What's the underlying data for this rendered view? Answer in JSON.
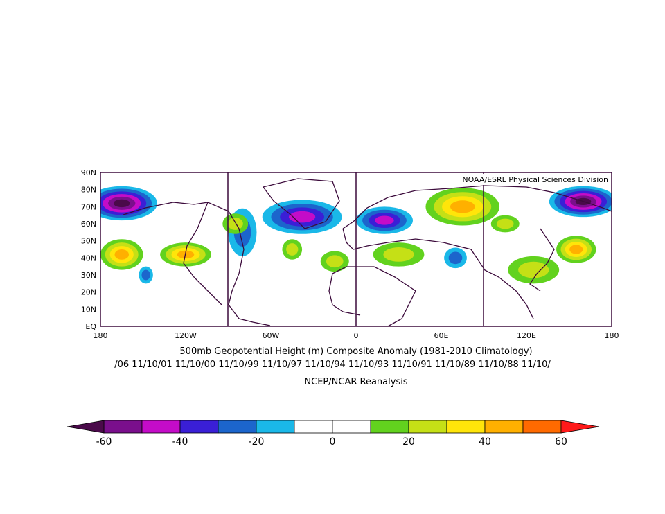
{
  "map": {
    "credit": "NOAA/ESRL Physical Sciences Division",
    "lat_labels": [
      "90N",
      "80N",
      "70N",
      "60N",
      "50N",
      "40N",
      "30N",
      "20N",
      "10N",
      "EQ"
    ],
    "lon_labels": [
      "180",
      "120W",
      "60W",
      "0",
      "60E",
      "120E",
      "180"
    ]
  },
  "captions": {
    "title": "500mb Geopotential Height (m) Composite Anomaly (1981-2010 Climatology)",
    "dates": "/06 11/10/01 11/10/00 11/10/99 11/10/97 11/10/94 11/10/93 11/10/91 11/10/89 11/10/88 11/10/",
    "source": "NCEP/NCAR Reanalysis"
  },
  "colorbar": {
    "labels": [
      "-60",
      "-40",
      "-20",
      "0",
      "20",
      "40",
      "60"
    ],
    "colors": [
      "#7a0f8c",
      "#c40cc8",
      "#3a1fd6",
      "#1c65cc",
      "#1ab8e8",
      "#ffffff",
      "#ffffff",
      "#62d21e",
      "#c5e016",
      "#ffe50a",
      "#ffb000",
      "#ff6a00"
    ],
    "low_color": "#4a0a4a",
    "high_color": "#ff1a1a"
  },
  "anomaly_blobs": [
    {
      "lon": -165,
      "lat": 72,
      "rx": 25,
      "ry": 10,
      "level": -60
    },
    {
      "lon": 160,
      "lat": 73,
      "rx": 24,
      "ry": 9,
      "level": -60
    },
    {
      "lon": -38,
      "lat": 64,
      "rx": 28,
      "ry": 10,
      "level": -40
    },
    {
      "lon": 20,
      "lat": 62,
      "rx": 20,
      "ry": 8,
      "level": -40
    },
    {
      "lon": -80,
      "lat": 55,
      "rx": 10,
      "ry": 14,
      "level": -20
    },
    {
      "lon": 70,
      "lat": 40,
      "rx": 8,
      "ry": 6,
      "level": -20
    },
    {
      "lon": -148,
      "lat": 30,
      "rx": 5,
      "ry": 5,
      "level": -20
    },
    {
      "lon": -165,
      "lat": 42,
      "rx": 15,
      "ry": 9,
      "level": 40
    },
    {
      "lon": -120,
      "lat": 42,
      "rx": 18,
      "ry": 7,
      "level": 40
    },
    {
      "lon": 75,
      "lat": 70,
      "rx": 26,
      "ry": 11,
      "level": 40
    },
    {
      "lon": 155,
      "lat": 45,
      "rx": 14,
      "ry": 8,
      "level": 40
    },
    {
      "lon": -45,
      "lat": 45,
      "rx": 7,
      "ry": 6,
      "level": 20
    },
    {
      "lon": -15,
      "lat": 38,
      "rx": 10,
      "ry": 6,
      "level": 20
    },
    {
      "lon": 30,
      "lat": 42,
      "rx": 18,
      "ry": 7,
      "level": 20
    },
    {
      "lon": 125,
      "lat": 33,
      "rx": 18,
      "ry": 8,
      "level": 20
    },
    {
      "lon": -85,
      "lat": 60,
      "rx": 9,
      "ry": 6,
      "level": 20
    },
    {
      "lon": 105,
      "lat": 60,
      "rx": 10,
      "ry": 5,
      "level": 20
    }
  ]
}
